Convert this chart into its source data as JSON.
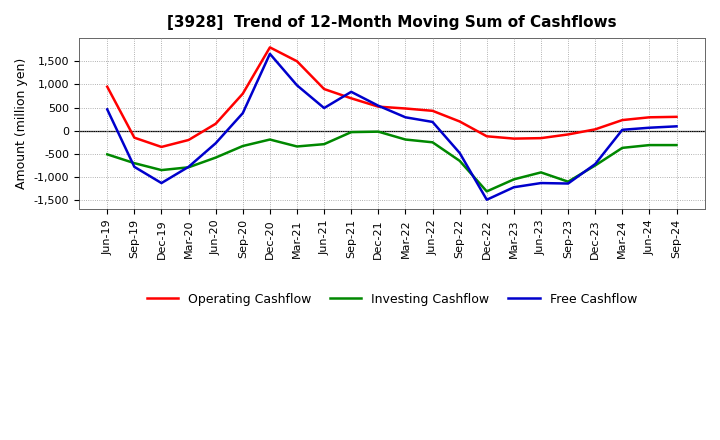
{
  "title": "[3928]  Trend of 12-Month Moving Sum of Cashflows",
  "ylabel": "Amount (million yen)",
  "x_labels": [
    "Jun-19",
    "Sep-19",
    "Dec-19",
    "Mar-20",
    "Jun-20",
    "Sep-20",
    "Dec-20",
    "Mar-21",
    "Jun-21",
    "Sep-21",
    "Dec-21",
    "Mar-22",
    "Jun-22",
    "Sep-22",
    "Dec-22",
    "Mar-23",
    "Jun-23",
    "Sep-23",
    "Dec-23",
    "Mar-24",
    "Jun-24",
    "Sep-24"
  ],
  "operating": [
    950,
    -150,
    -350,
    -200,
    150,
    800,
    1800,
    1500,
    900,
    700,
    520,
    480,
    430,
    200,
    -120,
    -170,
    -160,
    -80,
    30,
    230,
    290,
    300
  ],
  "investing": [
    -510,
    -700,
    -850,
    -790,
    -580,
    -330,
    -190,
    -340,
    -290,
    -30,
    -20,
    -190,
    -250,
    -650,
    -1310,
    -1050,
    -900,
    -1100,
    -750,
    -370,
    -310,
    -310
  ],
  "free": [
    460,
    -780,
    -1130,
    -780,
    -270,
    380,
    1660,
    980,
    490,
    840,
    540,
    290,
    190,
    -480,
    -1490,
    -1220,
    -1130,
    -1140,
    -720,
    20,
    65,
    95
  ],
  "ylim": [
    -1700,
    2000
  ],
  "yticks": [
    -1500,
    -1000,
    -500,
    0,
    500,
    1000,
    1500
  ],
  "operating_color": "#ff0000",
  "investing_color": "#008800",
  "free_color": "#0000cc",
  "bg_color": "#ffffff",
  "plot_bg_color": "#ffffff",
  "grid_color": "#999999",
  "linewidth": 1.8,
  "title_fontsize": 11,
  "label_fontsize": 8,
  "legend_fontsize": 9
}
